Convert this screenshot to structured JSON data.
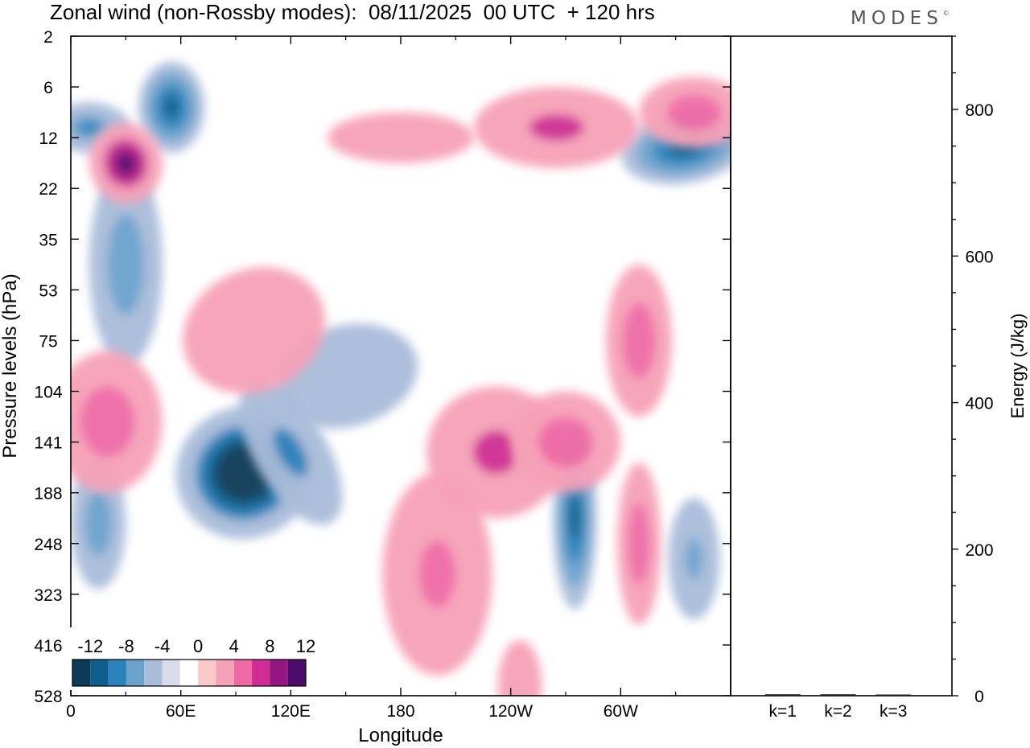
{
  "title": "Zonal wind (non-Rossby modes):  08/11/2025  00 UTC  + 120 hrs",
  "brand": "MODES",
  "brand_mark": "©",
  "colors": {
    "neg": [
      "#0d3a56",
      "#0e5f8e",
      "#2a83bb",
      "#6ba2cc",
      "#a9bcd9",
      "#d7dbea"
    ],
    "zero": "#ffffff",
    "pos": [
      "#f8c9c6",
      "#f6a1b8",
      "#ee6aa5",
      "#cf2d93",
      "#941680",
      "#4c0c6a"
    ]
  },
  "chart_data": [
    {
      "type": "heatmap",
      "title": "Zonal wind (non-Rossby modes)",
      "xlabel": "Longitude",
      "ylabel": "Pressure levels (hPa)",
      "x_ticks": [
        {
          "lon": 0,
          "label": "0"
        },
        {
          "lon": 60,
          "label": "60E"
        },
        {
          "lon": 120,
          "label": "120E"
        },
        {
          "lon": 180,
          "label": "180"
        },
        {
          "lon": 240,
          "label": "120W"
        },
        {
          "lon": 300,
          "label": "60W"
        }
      ],
      "xlim": [
        0,
        360
      ],
      "y_levels": [
        "2",
        "6",
        "12",
        "22",
        "35",
        "53",
        "75",
        "104",
        "141",
        "188",
        "248",
        "323",
        "416",
        "528"
      ],
      "colorbar": {
        "labels": [
          "-12",
          "-8",
          "-4",
          "0",
          "4",
          "8",
          "12"
        ],
        "levels": [
          -14,
          -12,
          -10,
          -8,
          -6,
          -4,
          -2,
          2,
          4,
          6,
          8,
          10,
          12,
          14
        ]
      },
      "features": [
        {
          "lon": 95,
          "level": 8.6,
          "value": -14,
          "dlon": 38,
          "dlev": 1.3,
          "rot": -22
        },
        {
          "lon": 120,
          "level": 8.2,
          "value": -6,
          "dlon": 20,
          "dlev": 1.6,
          "rot": -30
        },
        {
          "lon": 55,
          "level": 1.4,
          "value": -8,
          "dlon": 18,
          "dlev": 0.9,
          "rot": 0
        },
        {
          "lon": 10,
          "level": 1.8,
          "value": -7,
          "dlon": 22,
          "dlev": 0.5,
          "rot": 0
        },
        {
          "lon": 335,
          "level": 2.2,
          "value": -8,
          "dlon": 35,
          "dlev": 0.7,
          "rot": -10
        },
        {
          "lon": 30,
          "level": 4.5,
          "value": -4,
          "dlon": 20,
          "dlev": 2.0,
          "rot": 0
        },
        {
          "lon": 150,
          "level": 6.7,
          "value": -3,
          "dlon": 40,
          "dlev": 1.0,
          "rot": -15
        },
        {
          "lon": 275,
          "level": 9.5,
          "value": -8,
          "dlon": 12,
          "dlev": 1.8,
          "rot": 0
        },
        {
          "lon": 15,
          "level": 9.6,
          "value": -4,
          "dlon": 15,
          "dlev": 1.3,
          "rot": 0
        },
        {
          "lon": 340,
          "level": 10.3,
          "value": -5,
          "dlon": 14,
          "dlev": 1.2,
          "rot": 0
        },
        {
          "lon": 30,
          "level": 2.5,
          "value": 10,
          "dlon": 20,
          "dlev": 0.8,
          "rot": -10
        },
        {
          "lon": 265,
          "level": 1.8,
          "value": 6,
          "dlon": 45,
          "dlev": 0.8,
          "rot": 0
        },
        {
          "lon": 340,
          "level": 1.5,
          "value": 4,
          "dlon": 30,
          "dlev": 0.7,
          "rot": 0
        },
        {
          "lon": 232,
          "level": 8.2,
          "value": 6,
          "dlon": 38,
          "dlev": 1.3,
          "rot": 0
        },
        {
          "lon": 270,
          "level": 8.0,
          "value": 4,
          "dlon": 30,
          "dlev": 1.0,
          "rot": 0
        },
        {
          "lon": 200,
          "level": 10.6,
          "value": 5,
          "dlon": 30,
          "dlev": 2.0,
          "rot": 0
        },
        {
          "lon": 310,
          "level": 10.0,
          "value": 4,
          "dlon": 12,
          "dlev": 1.6,
          "rot": 0
        },
        {
          "lon": 20,
          "level": 7.6,
          "value": 4,
          "dlon": 30,
          "dlev": 1.4,
          "rot": 0
        },
        {
          "lon": 100,
          "level": 5.8,
          "value": 3,
          "dlon": 40,
          "dlev": 1.2,
          "rot": -25
        },
        {
          "lon": 310,
          "level": 6.0,
          "value": 4,
          "dlon": 18,
          "dlev": 1.5,
          "rot": 0
        },
        {
          "lon": 245,
          "level": 12.8,
          "value": 3,
          "dlon": 12,
          "dlev": 0.9,
          "rot": 0
        },
        {
          "lon": 180,
          "level": 2.0,
          "value": 3,
          "dlon": 40,
          "dlev": 0.5,
          "rot": 0
        }
      ]
    },
    {
      "type": "bar",
      "ylabel": "Energy (J/kg)",
      "categories": [
        "k=1",
        "k=2",
        "k=3"
      ],
      "values": [
        2,
        2,
        1
      ],
      "ylim": [
        0,
        900
      ],
      "y_ticks": [
        "0",
        "200",
        "400",
        "600",
        "800"
      ]
    }
  ]
}
